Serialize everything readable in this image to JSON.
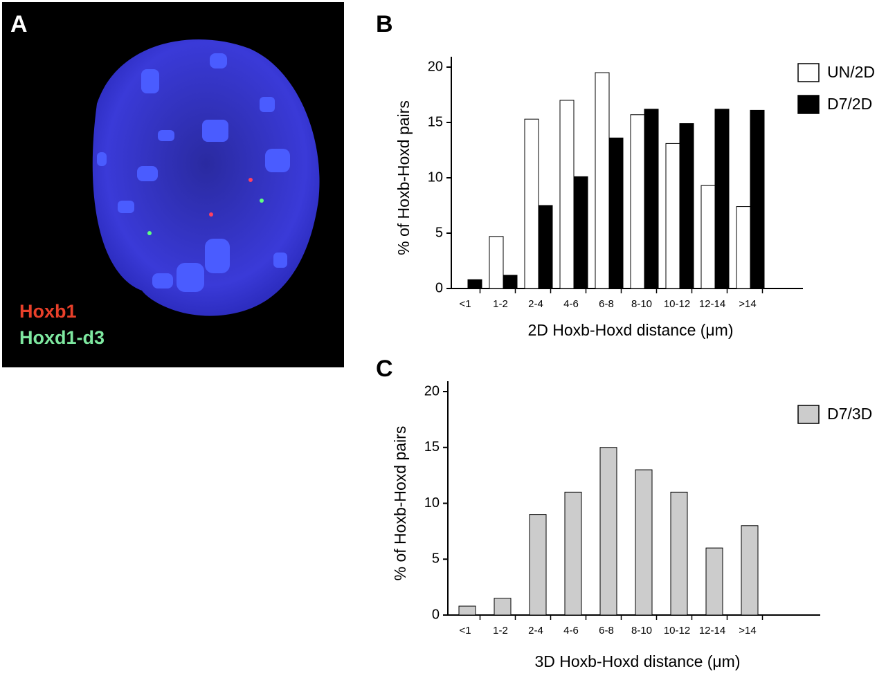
{
  "image_panel": {
    "label": "A",
    "probe_labels": [
      "Hoxb1",
      "Hoxd1-d3"
    ]
  },
  "chart_data": [
    {
      "type": "bar",
      "panel_label": "B",
      "categories": [
        "<1",
        "1-2",
        "2-4",
        "4-6",
        "6-8",
        "8-10",
        "10-12",
        "12-14",
        ">14"
      ],
      "series": [
        {
          "name": "UN/2D",
          "color": "#ffffff",
          "values": [
            0,
            4.7,
            15.3,
            17,
            19.5,
            15.7,
            13.1,
            9.3,
            7.4
          ]
        },
        {
          "name": "D7/2D",
          "color": "#000000",
          "values": [
            0.8,
            1.2,
            7.5,
            10.1,
            13.6,
            16.2,
            14.9,
            16.2,
            16.1
          ]
        }
      ],
      "x_label": "2D Hoxb-Hoxd distance (μm)",
      "y_label": "% of Hoxb-Hoxd pairs",
      "ylim": [
        0,
        20
      ],
      "yticks": [
        0,
        5,
        10,
        15,
        20
      ],
      "grid": false,
      "legend": "top-right"
    },
    {
      "type": "bar",
      "panel_label": "C",
      "categories": [
        "<1",
        "1-2",
        "2-4",
        "4-6",
        "6-8",
        "8-10",
        "10-12",
        "12-14",
        ">14"
      ],
      "series": [
        {
          "name": "D7/3D",
          "color": "#cccccc",
          "values": [
            0.8,
            1.5,
            9,
            11,
            15,
            13,
            11,
            6,
            8
          ]
        }
      ],
      "x_label": "3D Hoxb-Hoxd distance (μm)",
      "y_label": "% of Hoxb-Hoxd pairs",
      "ylim": [
        0,
        20
      ],
      "yticks": [
        0,
        5,
        10,
        15,
        20
      ],
      "grid": false,
      "legend": "top-right"
    }
  ]
}
